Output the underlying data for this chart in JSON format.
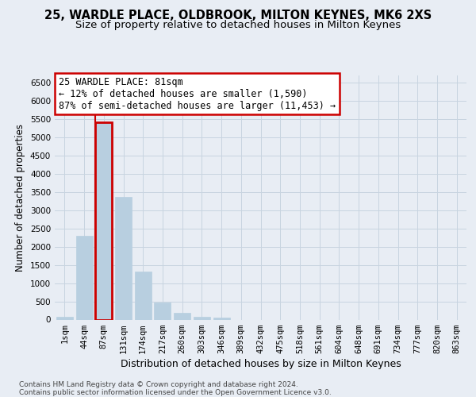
{
  "title1": "25, WARDLE PLACE, OLDBROOK, MILTON KEYNES, MK6 2XS",
  "title2": "Size of property relative to detached houses in Milton Keynes",
  "xlabel": "Distribution of detached houses by size in Milton Keynes",
  "ylabel": "Number of detached properties",
  "categories": [
    "1sqm",
    "44sqm",
    "87sqm",
    "131sqm",
    "174sqm",
    "217sqm",
    "260sqm",
    "303sqm",
    "346sqm",
    "389sqm",
    "432sqm",
    "475sqm",
    "518sqm",
    "561sqm",
    "604sqm",
    "648sqm",
    "691sqm",
    "734sqm",
    "777sqm",
    "820sqm",
    "863sqm"
  ],
  "values": [
    75,
    2300,
    5425,
    3370,
    1310,
    470,
    185,
    85,
    55,
    0,
    0,
    0,
    0,
    0,
    0,
    0,
    0,
    0,
    0,
    0,
    0
  ],
  "bar_color": "#b8cfe0",
  "highlight_bar_index": 2,
  "highlight_color": "#cc0000",
  "annotation_line1": "25 WARDLE PLACE: 81sqm",
  "annotation_line2": "← 12% of detached houses are smaller (1,590)",
  "annotation_line3": "87% of semi-detached houses are larger (11,453) →",
  "ylim_max": 6700,
  "yticks": [
    0,
    500,
    1000,
    1500,
    2000,
    2500,
    3000,
    3500,
    4000,
    4500,
    5000,
    5500,
    6000,
    6500
  ],
  "grid_color": "#c8d4e0",
  "background_color": "#e8edf4",
  "footer": "Contains HM Land Registry data © Crown copyright and database right 2024.\nContains public sector information licensed under the Open Government Licence v3.0.",
  "title1_fontsize": 10.5,
  "title2_fontsize": 9.5,
  "xlabel_fontsize": 9,
  "ylabel_fontsize": 8.5,
  "tick_fontsize": 7.5,
  "annotation_fontsize": 8.5,
  "footer_fontsize": 6.5
}
